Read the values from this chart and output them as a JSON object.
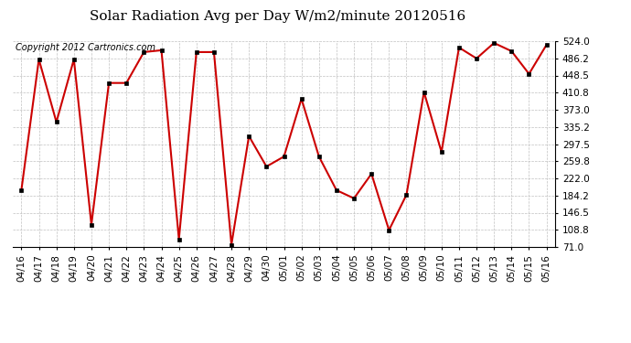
{
  "title": "Solar Radiation Avg per Day W/m2/minute 20120516",
  "copyright": "Copyright 2012 Cartronics.com",
  "dates": [
    "04/16",
    "04/17",
    "04/18",
    "04/19",
    "04/20",
    "04/21",
    "04/22",
    "04/23",
    "04/24",
    "04/25",
    "04/26",
    "04/27",
    "04/28",
    "04/29",
    "04/30",
    "05/01",
    "05/02",
    "05/03",
    "05/04",
    "05/05",
    "05/06",
    "05/07",
    "05/08",
    "05/09",
    "05/10",
    "05/11",
    "05/12",
    "05/13",
    "05/14",
    "05/15",
    "05/16"
  ],
  "values": [
    196,
    484,
    346,
    484,
    120,
    432,
    432,
    500,
    504,
    88,
    500,
    500,
    76,
    315,
    248,
    270,
    397,
    270,
    196,
    178,
    232,
    108,
    186,
    412,
    280,
    510,
    486,
    520,
    502,
    452,
    516
  ],
  "yticks": [
    71.0,
    108.8,
    146.5,
    184.2,
    222.0,
    259.8,
    297.5,
    335.2,
    373.0,
    410.8,
    448.5,
    486.2,
    524.0
  ],
  "ymin": 71.0,
  "ymax": 524.0,
  "line_color": "#cc0000",
  "marker_color": "#000000",
  "bg_color": "#ffffff",
  "plot_bg_color": "#ffffff",
  "grid_color": "#c0c0c0",
  "title_fontsize": 11,
  "copyright_fontsize": 7,
  "tick_fontsize": 7.5,
  "figwidth": 6.9,
  "figheight": 3.75
}
